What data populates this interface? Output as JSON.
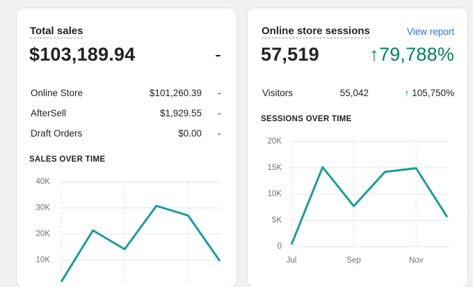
{
  "cards": [
    {
      "title": "Total sales",
      "total": "$103,189.94",
      "change": "-",
      "rows": [
        [
          "Online Store",
          "$101,260.39",
          "-"
        ],
        [
          "AfterSell",
          "$1,929.55",
          "-"
        ],
        [
          "Draft Orders",
          "$0.00",
          "-"
        ]
      ],
      "chart": {
        "type": "line",
        "title": "SALES OVER TIME",
        "categories": [
          null,
          null,
          null,
          null,
          null,
          null
        ],
        "values": [
          1700,
          21400,
          14200,
          30800,
          27100,
          9700
        ],
        "color": "#1a9c9c",
        "ylim": [
          0,
          40000
        ],
        "yticks": [
          {
            "value": 10000,
            "label": "10K"
          },
          {
            "value": 20000,
            "label": "20K"
          },
          {
            "value": 30000,
            "label": "30K"
          },
          {
            "value": 40000,
            "label": "40K"
          }
        ],
        "grid": true
      }
    },
    {
      "title": "Online store sessions",
      "link": "View report",
      "total": "57,519",
      "change": "79,788%",
      "rows": [
        [
          "Visitors",
          "55,042",
          "105,750%"
        ]
      ],
      "chart": {
        "type": "line",
        "title": "SESSIONS OVER TIME",
        "categories": [
          "Jul",
          null,
          "Sep",
          null,
          "Nov",
          null
        ],
        "values": [
          400,
          15100,
          7700,
          14200,
          14900,
          5600
        ],
        "color": "#1a9c9c",
        "ylim": [
          0,
          20000
        ],
        "yticks": [
          0,
          {
            "value": 5000,
            "label": "5K"
          },
          {
            "value": 10000,
            "label": "10K"
          },
          {
            "value": 15000,
            "label": "15K"
          },
          {
            "value": 20000,
            "label": "20K"
          }
        ],
        "grid": true
      }
    }
  ]
}
